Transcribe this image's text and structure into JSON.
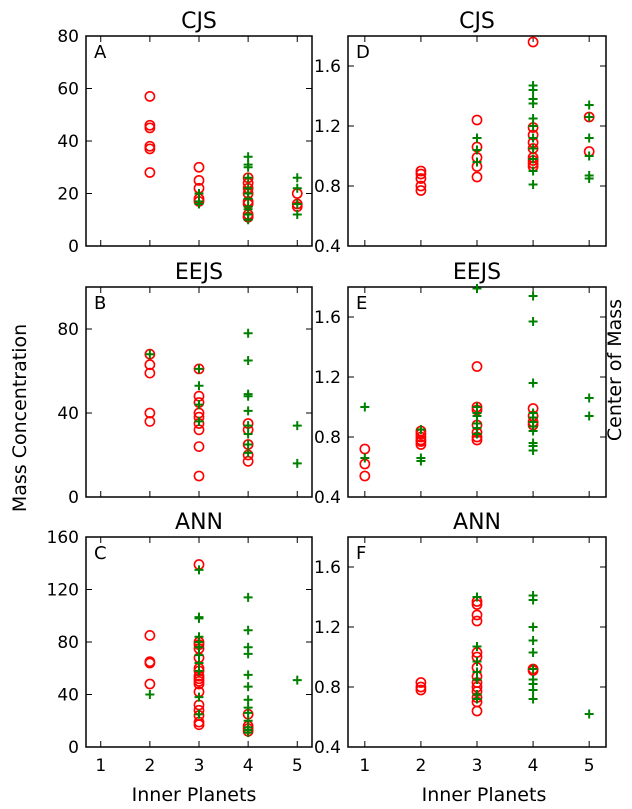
{
  "shared": {
    "xlabel": "Inner Planets",
    "left_ylabel": "Mass Concentration",
    "right_ylabel": "Center of Mass",
    "x_ticks": [
      "1",
      "2",
      "3",
      "4",
      "5"
    ],
    "xlim": [
      0.7,
      5.3
    ],
    "markers": {
      "circle": {
        "shape": "open-circle",
        "color": "#ff0000"
      },
      "plus": {
        "shape": "plus",
        "color": "#008000"
      }
    }
  },
  "chart_data": [
    {
      "type": "scatter",
      "letter": "A",
      "title": "CJS",
      "ylim": [
        0,
        80
      ],
      "y_ticks": [
        "0",
        "20",
        "40",
        "60",
        "80"
      ],
      "series": [
        {
          "marker": "circle",
          "x": [
            2,
            2,
            2,
            2,
            2,
            2,
            3,
            3,
            3,
            3,
            3,
            4,
            4,
            4,
            4,
            4,
            4,
            4,
            4,
            4,
            5,
            5,
            5
          ],
          "y": [
            57,
            46,
            45,
            38,
            37,
            28,
            30,
            25,
            22,
            18,
            17,
            26,
            24,
            22,
            20,
            17,
            16,
            12,
            11,
            11,
            20,
            16,
            15
          ]
        },
        {
          "marker": "plus",
          "x": [
            3,
            3,
            3,
            4,
            4,
            4,
            4,
            4,
            4,
            4,
            4,
            4,
            4,
            4,
            5,
            5,
            5,
            5
          ],
          "y": [
            20,
            17,
            16,
            34,
            31,
            30,
            26,
            22,
            20,
            18,
            15,
            14,
            12,
            10,
            26,
            22,
            16,
            12
          ]
        }
      ]
    },
    {
      "type": "scatter",
      "letter": "D",
      "title": "CJS",
      "ylim": [
        0.4,
        1.8
      ],
      "y_ticks": [
        "0.4",
        "0.8",
        "1.2",
        "1.6"
      ],
      "series": [
        {
          "marker": "circle",
          "x": [
            2,
            2,
            2,
            2,
            2,
            3,
            3,
            3,
            3,
            3,
            4,
            4,
            4,
            4,
            4,
            4,
            4,
            4,
            4,
            5,
            5
          ],
          "y": [
            0.9,
            0.88,
            0.85,
            0.8,
            0.77,
            1.24,
            1.06,
            0.99,
            0.93,
            0.86,
            1.76,
            1.19,
            1.14,
            1.09,
            1.05,
            0.99,
            0.97,
            0.95,
            0.93,
            1.26,
            1.03
          ]
        },
        {
          "marker": "plus",
          "x": [
            3,
            3,
            3,
            4,
            4,
            4,
            4,
            4,
            4,
            4,
            4,
            4,
            4,
            4,
            5,
            5,
            5,
            5,
            5,
            5
          ],
          "y": [
            1.12,
            1.04,
            0.96,
            1.47,
            1.44,
            1.38,
            1.35,
            1.25,
            1.2,
            1.12,
            1.05,
            0.98,
            0.9,
            0.81,
            1.34,
            1.26,
            1.12,
            1.0,
            0.87,
            0.85
          ]
        }
      ]
    },
    {
      "type": "scatter",
      "letter": "B",
      "title": "EEJS",
      "ylim": [
        0,
        100
      ],
      "y_ticks": [
        "0",
        "40",
        "80"
      ],
      "series": [
        {
          "marker": "circle",
          "x": [
            2,
            2,
            2,
            2,
            2,
            3,
            3,
            3,
            3,
            3,
            3,
            3,
            3,
            3,
            4,
            4,
            4,
            4,
            4
          ],
          "y": [
            68,
            63,
            59,
            40,
            36,
            61,
            48,
            45,
            40,
            38,
            35,
            32,
            24,
            10,
            35,
            32,
            25,
            20,
            17
          ]
        },
        {
          "marker": "plus",
          "x": [
            2,
            3,
            3,
            3,
            3,
            4,
            4,
            4,
            4,
            4,
            4,
            4,
            4,
            4,
            5,
            5
          ],
          "y": [
            68,
            61,
            53,
            44,
            36,
            78,
            65,
            49,
            48,
            41,
            34,
            30,
            25,
            21,
            34,
            16
          ]
        }
      ]
    },
    {
      "type": "scatter",
      "letter": "E",
      "title": "EEJS",
      "ylim": [
        0.4,
        1.8
      ],
      "y_ticks": [
        "0.4",
        "0.8",
        "1.2",
        "1.6"
      ],
      "series": [
        {
          "marker": "circle",
          "x": [
            1,
            1,
            1,
            2,
            2,
            2,
            2,
            2,
            2,
            3,
            3,
            3,
            3,
            3,
            3,
            3,
            4,
            4,
            4,
            4
          ],
          "y": [
            0.72,
            0.62,
            0.54,
            0.84,
            0.82,
            0.8,
            0.78,
            0.77,
            0.75,
            1.27,
            1.0,
            0.98,
            0.88,
            0.83,
            0.8,
            0.78,
            0.99,
            0.94,
            0.9,
            0.88
          ]
        },
        {
          "marker": "plus",
          "x": [
            1,
            1,
            2,
            2,
            2,
            3,
            3,
            3,
            3,
            3,
            3,
            3,
            4,
            4,
            4,
            4,
            4,
            4,
            4,
            4,
            4,
            4,
            4,
            5,
            5
          ],
          "y": [
            1.0,
            0.66,
            0.85,
            0.66,
            0.64,
            1.79,
            1.0,
            0.96,
            0.94,
            0.89,
            0.86,
            0.82,
            1.74,
            1.57,
            1.16,
            0.96,
            0.93,
            0.9,
            0.87,
            0.84,
            0.76,
            0.74,
            0.71,
            1.06,
            0.94
          ]
        }
      ]
    },
    {
      "type": "scatter",
      "letter": "C",
      "title": "ANN",
      "ylim": [
        0,
        160
      ],
      "y_ticks": [
        "0",
        "40",
        "80",
        "120",
        "160"
      ],
      "series": [
        {
          "marker": "circle",
          "x": [
            2,
            2,
            2,
            2,
            3,
            3,
            3,
            3,
            3,
            3,
            3,
            3,
            3,
            3,
            3,
            3,
            3,
            3,
            3,
            3,
            3,
            4,
            4,
            4,
            4
          ],
          "y": [
            85,
            65,
            64,
            48,
            139,
            80,
            78,
            75,
            68,
            60,
            58,
            54,
            52,
            50,
            48,
            42,
            32,
            28,
            24,
            19,
            17,
            25,
            16,
            14,
            12
          ]
        },
        {
          "marker": "plus",
          "x": [
            2,
            3,
            3,
            3,
            3,
            3,
            3,
            3,
            3,
            3,
            3,
            3,
            4,
            4,
            4,
            4,
            4,
            4,
            4,
            4,
            4,
            4,
            4,
            4,
            4,
            5
          ],
          "y": [
            40,
            135,
            99,
            98,
            84,
            80,
            76,
            70,
            64,
            58,
            38,
            25,
            114,
            89,
            76,
            71,
            55,
            46,
            36,
            30,
            26,
            20,
            15,
            13,
            11,
            51
          ]
        }
      ]
    },
    {
      "type": "scatter",
      "letter": "F",
      "title": "ANN",
      "ylim": [
        0.4,
        1.8
      ],
      "y_ticks": [
        "0.4",
        "0.8",
        "1.2",
        "1.6"
      ],
      "series": [
        {
          "marker": "circle",
          "x": [
            2,
            2,
            2,
            3,
            3,
            3,
            3,
            3,
            3,
            3,
            3,
            3,
            3,
            3,
            3,
            3,
            3,
            4,
            4
          ],
          "y": [
            0.83,
            0.8,
            0.78,
            1.37,
            1.35,
            1.28,
            1.24,
            1.03,
            1.0,
            0.93,
            0.87,
            0.83,
            0.8,
            0.77,
            0.73,
            0.7,
            0.64,
            0.92,
            0.91
          ]
        },
        {
          "marker": "plus",
          "x": [
            3,
            3,
            3,
            3,
            3,
            3,
            3,
            4,
            4,
            4,
            4,
            4,
            4,
            4,
            4,
            4,
            4,
            5
          ],
          "y": [
            1.4,
            1.07,
            0.97,
            0.9,
            0.85,
            0.75,
            0.72,
            1.41,
            1.38,
            1.2,
            1.11,
            1.03,
            0.92,
            0.85,
            0.82,
            0.78,
            0.72,
            0.62
          ]
        }
      ]
    }
  ]
}
